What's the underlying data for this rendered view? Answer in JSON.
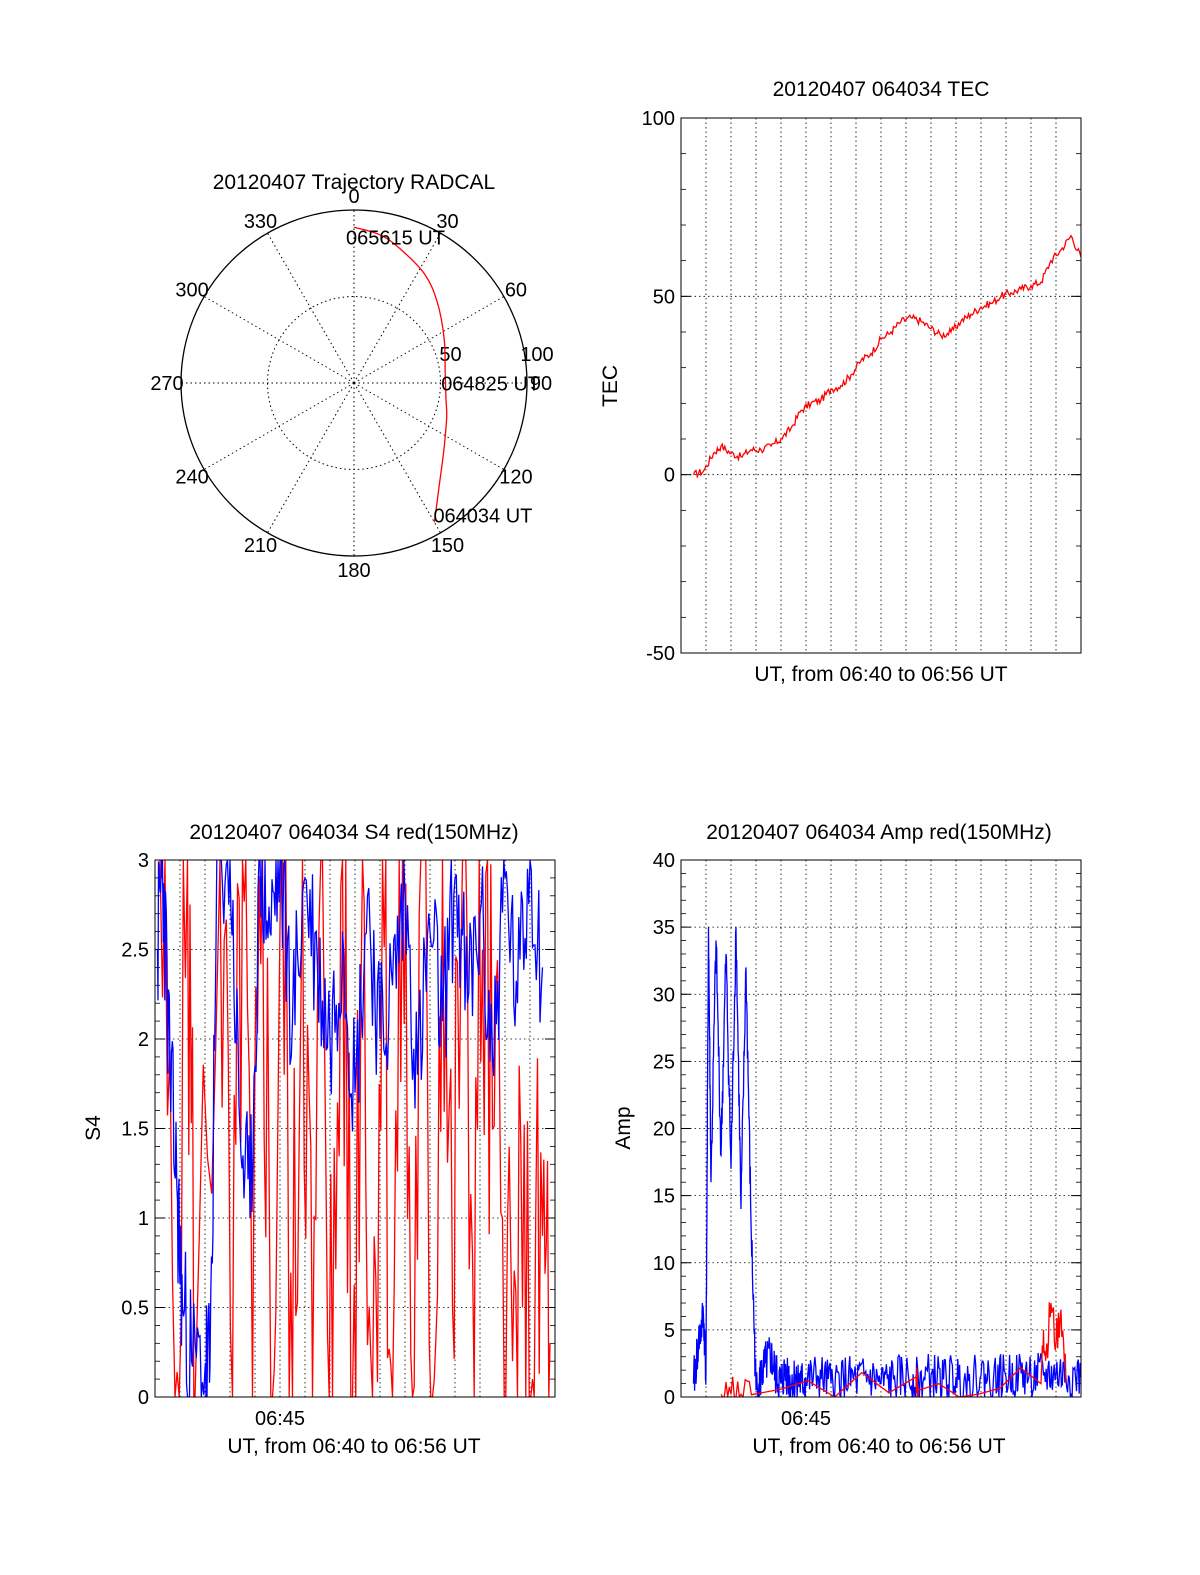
{
  "colors": {
    "red": "#ff0000",
    "blue": "#0000ff",
    "axis": "#000000",
    "grid": "#000000"
  },
  "chart_data": [
    {
      "type": "scatter",
      "subtype": "polar",
      "title": "20120407 Trajectory RADCAL",
      "radial_range": [
        0,
        100
      ],
      "radial_ticks": [
        50,
        100
      ],
      "azimuth_labels": [
        "0",
        "30",
        "60",
        "90",
        "120",
        "150",
        "180",
        "210",
        "240",
        "270",
        "300",
        "330"
      ],
      "grid": true,
      "series": [
        {
          "color": "#ff0000",
          "points": [
            {
              "az": 150,
              "r": 93
            },
            {
              "az": 141,
              "r": 78
            },
            {
              "az": 127,
              "r": 65
            },
            {
              "az": 110,
              "r": 57
            },
            {
              "az": 100,
              "r": 54
            },
            {
              "az": 84,
              "r": 53
            },
            {
              "az": 64,
              "r": 58
            },
            {
              "az": 46,
              "r": 67
            },
            {
              "az": 33,
              "r": 75
            },
            {
              "az": 19,
              "r": 82
            },
            {
              "az": 10,
              "r": 87
            },
            {
              "az": 0,
              "r": 90
            }
          ]
        }
      ],
      "annotations": [
        {
          "text": "064034 UT",
          "az": 150,
          "r": 93
        },
        {
          "text": "064825 UT",
          "az": 84,
          "r": 53
        },
        {
          "text": "065615 UT",
          "az": 0,
          "r": 90
        }
      ]
    },
    {
      "type": "line",
      "title": "20120407 064034 TEC",
      "xlabel": "UT, from 06:40 to 06:56 UT",
      "ylabel": "TEC",
      "ylim": [
        -50,
        100
      ],
      "yticks": [
        -50,
        0,
        50,
        100
      ],
      "xlim": [
        0.0,
        16.0
      ],
      "grid": true,
      "series": [
        {
          "color": "#ff0000",
          "x": [
            0.5,
            0.9,
            1.3,
            1.6,
            2.0,
            2.4,
            2.8,
            3.2,
            3.6,
            4.0,
            4.4,
            4.8,
            5.2,
            5.6,
            6.0,
            6.4,
            6.8,
            7.2,
            7.6,
            8.0,
            8.4,
            8.8,
            9.2,
            9.6,
            10.0,
            10.4,
            10.8,
            11.2,
            11.6,
            12.0,
            12.4,
            12.8,
            13.2,
            13.6,
            14.0,
            14.4,
            14.8,
            15.2,
            15.6,
            16.0
          ],
          "y": [
            0,
            1,
            6,
            8,
            6,
            5,
            7,
            7,
            8,
            10,
            13,
            18,
            20,
            21,
            24,
            25,
            28,
            32,
            34,
            38,
            40,
            43,
            44,
            43,
            41,
            39,
            40,
            43,
            45,
            47,
            48,
            50,
            51,
            52,
            53,
            54,
            60,
            63,
            67,
            61
          ]
        }
      ]
    },
    {
      "type": "line",
      "title": "20120407 064034 S4 red(150MHz)",
      "xlabel": "UT, from 06:40 to 06:56 UT",
      "ylabel": "S4",
      "ylim": [
        0,
        3
      ],
      "yticks": [
        "0",
        "0.5",
        "1",
        "1.5",
        "2",
        "2.5",
        "3"
      ],
      "xlim": [
        0.0,
        16.0
      ],
      "xticks": [
        {
          "x": 5.0,
          "label": "06:45"
        }
      ],
      "grid": true,
      "series": [
        {
          "color": "#ff0000",
          "x": [
            0.2,
            0.8,
            1.3,
            1.6,
            2.6,
            3.1,
            3.5,
            3.9,
            4.3,
            4.7,
            5.1,
            5.5,
            5.9,
            6.3,
            6.7,
            7.1,
            7.5,
            7.9,
            8.3,
            8.7,
            9.1,
            9.5,
            9.9,
            10.3,
            10.7,
            11.1,
            11.5,
            11.9,
            12.3,
            12.7,
            13.1,
            13.5,
            13.9,
            14.3,
            14.7,
            15.1,
            15.5,
            15.8
          ],
          "y": [
            3,
            0,
            3,
            0,
            3,
            0,
            3,
            0,
            3,
            0,
            3,
            0,
            3,
            0,
            3,
            0,
            3,
            0,
            3,
            0,
            3,
            0,
            3,
            0,
            3,
            0,
            3,
            0.5,
            3,
            0.8,
            2.5,
            1.5,
            1.0,
            0.2,
            0.5,
            0.1,
            0.9,
            0.3
          ]
        },
        {
          "color": "#0000ff",
          "x": [
            0.1,
            0.3,
            0.6,
            0.9,
            1.1,
            1.5,
            2.0,
            2.2,
            2.5,
            3.0,
            3.4,
            3.8,
            4.2,
            4.6,
            5.0,
            5.5,
            6.0,
            6.5,
            7.0,
            7.5,
            8.0,
            8.5,
            9.0,
            9.5,
            10.0,
            10.5,
            11.0,
            11.5,
            12.0,
            12.5,
            13.0,
            13.5,
            14.0,
            14.5,
            15.0,
            15.5
          ],
          "y": [
            2.5,
            3,
            1.8,
            1.1,
            0.5,
            0.17,
            0.16,
            0.17,
            3,
            3,
            1.5,
            1.0,
            3,
            2.6,
            3,
            2.1,
            2.9,
            2.4,
            2.0,
            2.6,
            1.7,
            2.8,
            2.0,
            2.3,
            2.8,
            1.8,
            2.6,
            2.1,
            2.9,
            2.2,
            2.7,
            1.9,
            2.9,
            2.2,
            3,
            2.4
          ]
        }
      ]
    },
    {
      "type": "line",
      "title": "20120407 064034 Amp red(150MHz)",
      "xlabel": "UT, from 06:40 to 06:56 UT",
      "ylabel": "Amp",
      "ylim": [
        0,
        40
      ],
      "yticks": [
        0,
        5,
        10,
        15,
        20,
        25,
        30,
        35,
        40
      ],
      "xlim": [
        0.0,
        16.0
      ],
      "xticks": [
        {
          "x": 5.0,
          "label": "06:45"
        }
      ],
      "grid": true,
      "series": [
        {
          "color": "#0000ff",
          "x": [
            0.5,
            0.7,
            0.9,
            1.0,
            1.1,
            1.2,
            1.4,
            1.6,
            1.8,
            2.0,
            2.2,
            2.4,
            2.6,
            2.8,
            3.0,
            3.2,
            3.4,
            3.6,
            3.8,
            4.0,
            4.2,
            4.4,
            4.6,
            4.8,
            5.0,
            5.5,
            6.0,
            6.5,
            7.0,
            7.5,
            8.0,
            8.5,
            9.0,
            9.5,
            10.0,
            10.5,
            11.0,
            11.5,
            12.0,
            12.5,
            13.0,
            13.5,
            14.0,
            14.5,
            15.0,
            15.5,
            16.0
          ],
          "y": [
            1,
            4,
            6,
            2,
            35,
            16,
            34,
            18,
            33,
            17,
            35,
            14,
            32,
            13,
            0.5,
            1.5,
            2.5,
            3,
            1.5,
            1,
            2,
            1,
            1.5,
            1,
            1.2,
            1.5,
            1,
            1.4,
            1.2,
            1.5,
            1,
            1.3,
            1.5,
            1.2,
            1.6,
            1.3,
            1.5,
            1.2,
            1.6,
            1.4,
            1.5,
            1.7,
            1.5,
            1.6,
            1.7,
            1.6,
            1.5
          ]
        },
        {
          "color": "#ff0000",
          "x": [
            1.6,
            2.0,
            2.4,
            2.9,
            9.4,
            9.5,
            14.4,
            14.5,
            14.6,
            14.8,
            15.0,
            15.2,
            15.4
          ],
          "y": [
            0.2,
            0.2,
            0.2,
            0.2,
            1.5,
            0.5,
            1,
            5,
            3,
            7,
            4,
            6.5,
            1
          ]
        }
      ]
    }
  ]
}
